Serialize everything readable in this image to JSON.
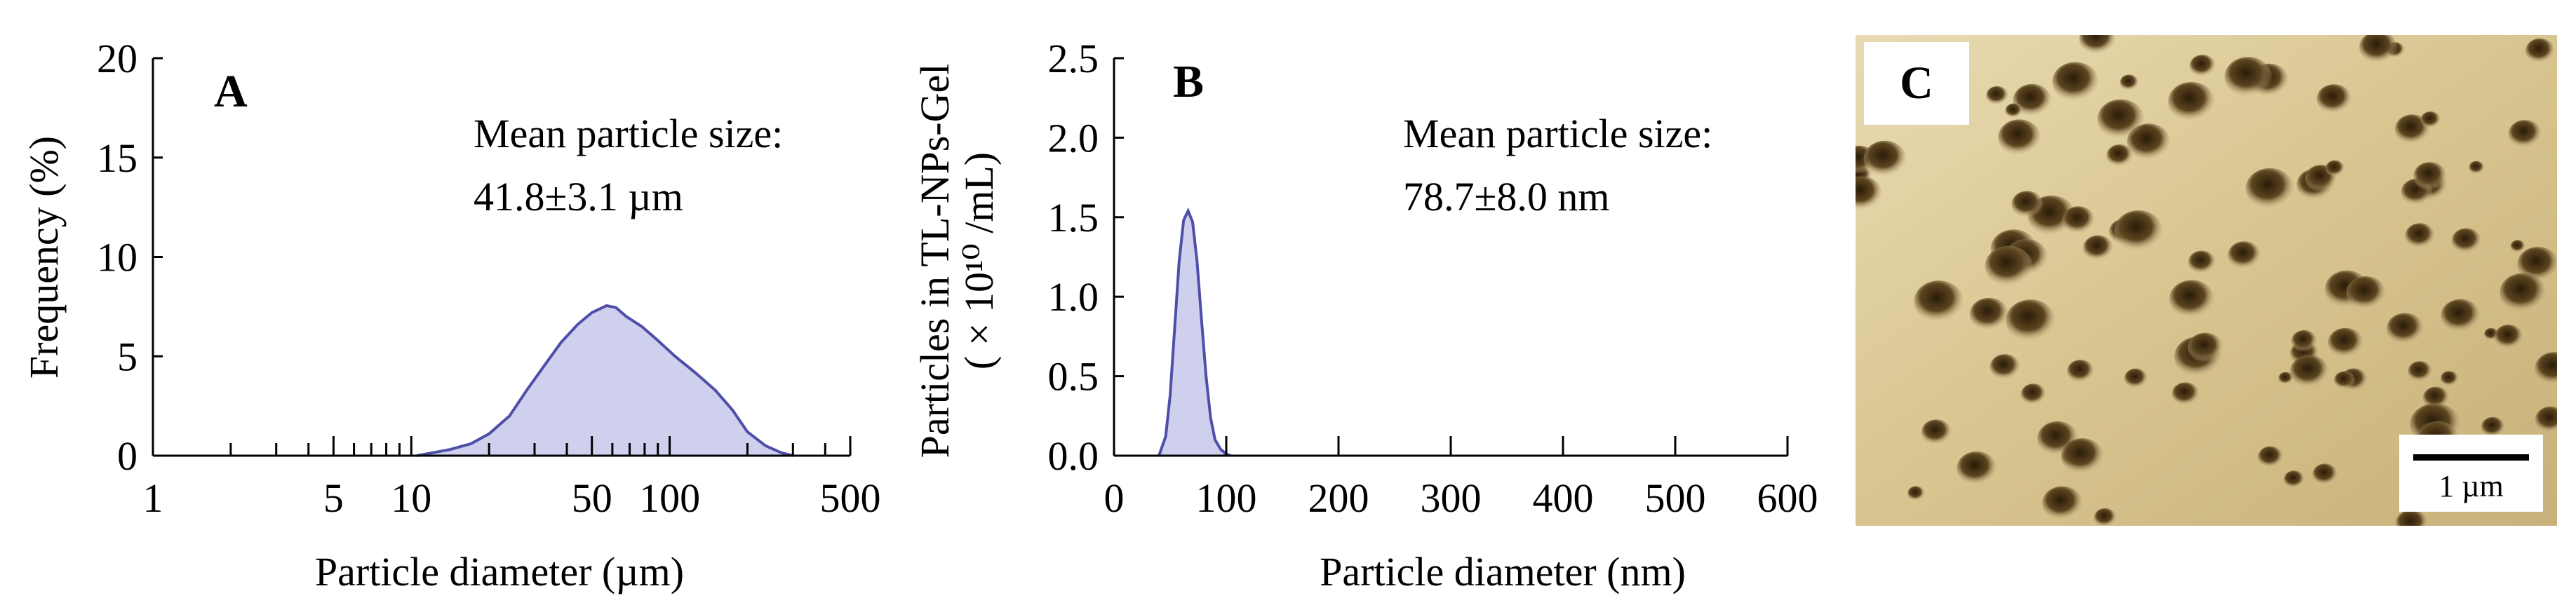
{
  "chart_data": [
    {
      "type": "area",
      "panel_label": "A",
      "xlabel": "Particle diameter (µm)",
      "ylabel": "Frequency (%)",
      "xscale": "log",
      "xlim": [
        1,
        500
      ],
      "ylim": [
        0,
        20
      ],
      "xticklabels": [
        "1",
        "5",
        "10",
        "50",
        "100",
        "500"
      ],
      "xtick_values": [
        1,
        5,
        10,
        50,
        100,
        500
      ],
      "minor_xticks": [
        2,
        3,
        4,
        6,
        7,
        8,
        9,
        20,
        30,
        40,
        60,
        70,
        80,
        90,
        200,
        300,
        400
      ],
      "yticks": [
        0,
        5,
        10,
        15,
        20
      ],
      "annotation_line1": "Mean particle size:",
      "annotation_line2": "41.8±3.1 µm",
      "series_color": "#4e4fa8",
      "fill_color": "#cfd0ee",
      "x": [
        10.5,
        14,
        17,
        20,
        24,
        28,
        33,
        38,
        44,
        50,
        57,
        62,
        68,
        78,
        90,
        105,
        125,
        150,
        175,
        200,
        235,
        270,
        300
      ],
      "y": [
        0,
        0.3,
        0.6,
        1.1,
        2.0,
        3.3,
        4.6,
        5.7,
        6.6,
        7.2,
        7.55,
        7.45,
        7.0,
        6.5,
        5.8,
        5.0,
        4.2,
        3.3,
        2.3,
        1.2,
        0.5,
        0.15,
        0
      ]
    },
    {
      "type": "area",
      "panel_label": "B",
      "xlabel": "Particle diameter (nm)",
      "ylabel_line1": "Particles in TL-NPs-Gel",
      "ylabel_line2": "( × 10¹⁰ /mL)",
      "xlim": [
        0,
        600
      ],
      "ylim": [
        0,
        2.5
      ],
      "xticks": [
        0,
        100,
        200,
        300,
        400,
        500,
        600
      ],
      "yticks": [
        "0.0",
        "0.5",
        "1.0",
        "1.5",
        "2.0",
        "2.5"
      ],
      "annotation_line1": "Mean particle size:",
      "annotation_line2": "78.7±8.0 nm",
      "series_color": "#4e4fa8",
      "fill_color": "#cfd0ee",
      "x": [
        40,
        46,
        50,
        54,
        58,
        62,
        66,
        70,
        74,
        78,
        82,
        86,
        90,
        95,
        100,
        104
      ],
      "y": [
        0,
        0.12,
        0.38,
        0.8,
        1.22,
        1.48,
        1.54,
        1.47,
        1.22,
        0.85,
        0.5,
        0.24,
        0.1,
        0.04,
        0.01,
        0
      ]
    }
  ],
  "image_panel": {
    "panel_label": "C",
    "scalebar_label": "1 µm",
    "background_color": "#d9c596",
    "pit_color": "#3d2c12"
  }
}
